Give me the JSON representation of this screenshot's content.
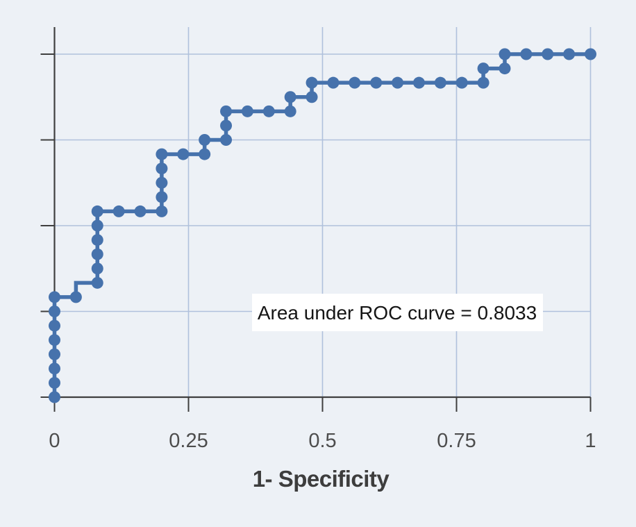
{
  "figure": {
    "background": "#edf1f6"
  },
  "chart_data": {
    "type": "line",
    "subtype": "roc-step-curve",
    "title": "",
    "xlabel": "1- Specificity",
    "ylabel": "",
    "xlim": [
      0,
      1
    ],
    "ylim": [
      0,
      1
    ],
    "grid": true,
    "legend": "none",
    "annotation": "Area under ROC curve = 0.8033",
    "auc": 0.8033,
    "x_ticks": [
      0,
      0.25,
      0.5,
      0.75,
      1
    ],
    "x_tick_labels": [
      "0",
      "0.25",
      "0.5",
      "0.75",
      "1"
    ],
    "y_ticks": [
      0,
      0.25,
      0.5,
      0.75,
      1
    ],
    "y_tick_labels": [
      "",
      "",
      "",
      "",
      ""
    ],
    "n_positives": 24,
    "n_negatives": 25,
    "series": [
      {
        "name": "ROC curve",
        "color": "#4672ac",
        "marker": "circle",
        "note": "points given as [false_positive_count, true_positive_count]; x = fp/25, y = tp/24; steps drawn vertical-then-horizontal",
        "points": [
          [
            0,
            0
          ],
          [
            0,
            1
          ],
          [
            0,
            2
          ],
          [
            0,
            3
          ],
          [
            0,
            4
          ],
          [
            0,
            5
          ],
          [
            0,
            6
          ],
          [
            0,
            7
          ],
          [
            1,
            7
          ],
          [
            2,
            8
          ],
          [
            2,
            9
          ],
          [
            2,
            10
          ],
          [
            2,
            11
          ],
          [
            2,
            12
          ],
          [
            2,
            13
          ],
          [
            3,
            13
          ],
          [
            4,
            13
          ],
          [
            5,
            13
          ],
          [
            5,
            14
          ],
          [
            5,
            15
          ],
          [
            5,
            16
          ],
          [
            5,
            17
          ],
          [
            6,
            17
          ],
          [
            7,
            17
          ],
          [
            7,
            18
          ],
          [
            8,
            18
          ],
          [
            8,
            19
          ],
          [
            8,
            20
          ],
          [
            9,
            20
          ],
          [
            10,
            20
          ],
          [
            11,
            20
          ],
          [
            11,
            21
          ],
          [
            12,
            21
          ],
          [
            12,
            22
          ],
          [
            13,
            22
          ],
          [
            14,
            22
          ],
          [
            15,
            22
          ],
          [
            16,
            22
          ],
          [
            17,
            22
          ],
          [
            18,
            22
          ],
          [
            19,
            22
          ],
          [
            20,
            22
          ],
          [
            20,
            23
          ],
          [
            21,
            23
          ],
          [
            21,
            24
          ],
          [
            22,
            24
          ],
          [
            23,
            24
          ],
          [
            24,
            24
          ],
          [
            25,
            24
          ]
        ]
      }
    ],
    "colors": {
      "background": "#edf1f6",
      "curve": "#4672ac",
      "gridline": "#b0c1dc",
      "axis": "#3f3f3f",
      "tick_label": "#4d4d4d",
      "axis_title": "#3d3d3d",
      "annotation_bg": "#ffffff",
      "annotation_text": "#151515"
    }
  }
}
